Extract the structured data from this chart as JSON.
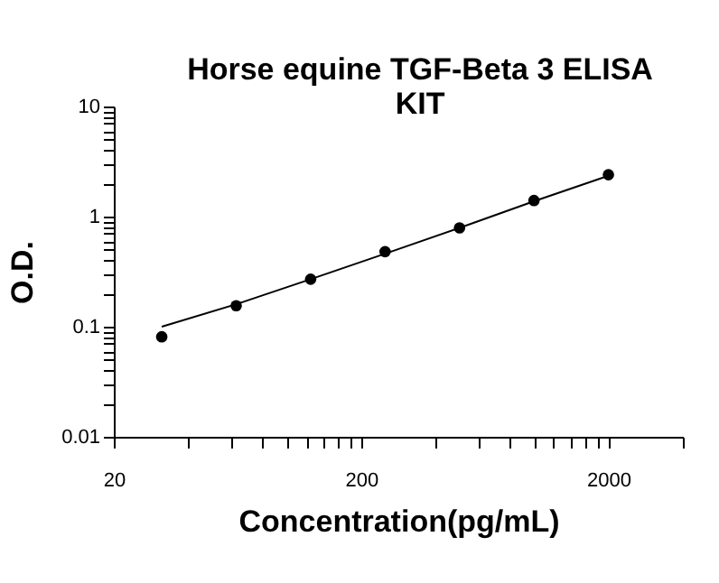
{
  "chart_data": {
    "type": "scatter",
    "title": "Horse equine TGF-Beta 3 ELISA KIT",
    "xlabel": "Concentration(pg/mL)",
    "ylabel": "O.D.",
    "log": "xy",
    "xlim": [
      20,
      4000
    ],
    "xticks": [
      20,
      {
        "value": 40,
        "label": null
      },
      {
        "value": 60,
        "label": null
      },
      {
        "value": 80,
        "label": null
      },
      {
        "value": 100,
        "label": null
      },
      {
        "value": 120,
        "label": null
      },
      {
        "value": 140,
        "label": null
      },
      {
        "value": 160,
        "label": null
      },
      {
        "value": 180,
        "label": null
      },
      200,
      {
        "value": 400,
        "label": null
      },
      {
        "value": 600,
        "label": null
      },
      {
        "value": 800,
        "label": null
      },
      {
        "value": 1000,
        "label": null
      },
      {
        "value": 1200,
        "label": null
      },
      {
        "value": 1400,
        "label": null
      },
      {
        "value": 1600,
        "label": null
      },
      {
        "value": 1800,
        "label": null
      },
      2000,
      {
        "value": 4000,
        "label": null
      }
    ],
    "ylim": [
      0.01,
      10
    ],
    "yticks": [
      0.01,
      {
        "value": 0.02,
        "label": null
      },
      {
        "value": 0.03,
        "label": null
      },
      {
        "value": 0.04,
        "label": null
      },
      {
        "value": 0.05,
        "label": null
      },
      {
        "value": 0.06,
        "label": null
      },
      {
        "value": 0.07,
        "label": null
      },
      {
        "value": 0.08,
        "label": null
      },
      {
        "value": 0.09,
        "label": null
      },
      0.1,
      {
        "value": 0.2,
        "label": null
      },
      {
        "value": 0.3,
        "label": null
      },
      {
        "value": 0.4,
        "label": null
      },
      {
        "value": 0.5,
        "label": null
      },
      {
        "value": 0.6,
        "label": null
      },
      {
        "value": 0.7,
        "label": null
      },
      {
        "value": 0.8,
        "label": null
      },
      {
        "value": 0.9,
        "label": null
      },
      1,
      {
        "value": 2,
        "label": null
      },
      {
        "value": 3,
        "label": null
      },
      {
        "value": 4,
        "label": null
      },
      {
        "value": 5,
        "label": null
      },
      {
        "value": 6,
        "label": null
      },
      {
        "value": 7,
        "label": null
      },
      {
        "value": 8,
        "label": null
      },
      {
        "value": 9,
        "label": null
      },
      10
    ],
    "series": [
      {
        "marker": "circle",
        "color": "#000000",
        "x": [
          31.25,
          62.5,
          125,
          250,
          500,
          1000,
          2000
        ],
        "values": [
          0.081,
          0.155,
          0.27,
          0.48,
          0.79,
          1.4,
          2.4
        ]
      },
      {
        "type": "line",
        "marker": "none",
        "line_style": "solid",
        "color": "#000000",
        "x": [
          31.25,
          62.5,
          125,
          250,
          500,
          1000,
          2000
        ],
        "values": [
          0.1,
          0.16,
          0.27,
          0.46,
          0.79,
          1.38,
          2.35
        ]
      }
    ]
  }
}
